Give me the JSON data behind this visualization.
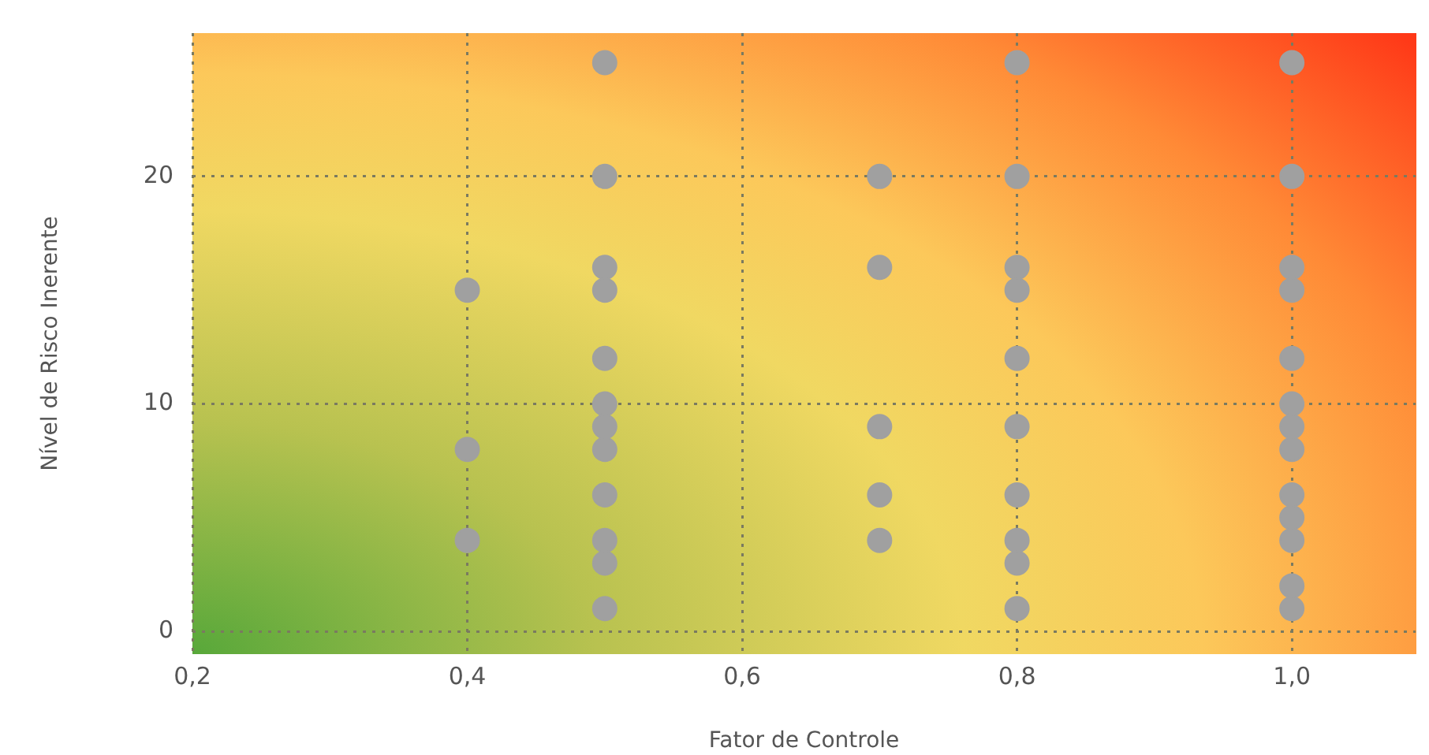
{
  "chart_data": {
    "type": "scatter",
    "xlabel": "Fator de Controle",
    "ylabel": "Nível de Risco Inerente",
    "series": [
      {
        "color": "#a0a0a0",
        "x": [
          0.4,
          0.4,
          0.4,
          0.5,
          0.5,
          0.5,
          0.5,
          0.5,
          0.5,
          0.5,
          0.5,
          0.5,
          0.5,
          0.5,
          0.5,
          0.7,
          0.7,
          0.7,
          0.7,
          0.7,
          0.8,
          0.8,
          0.8,
          0.8,
          0.8,
          0.8,
          0.8,
          0.8,
          0.8,
          0.8,
          1.0,
          1.0,
          1.0,
          1.0,
          1.0,
          1.0,
          1.0,
          1.0,
          1.0,
          1.0,
          1.0,
          1.0,
          1.0
        ],
        "values": [
          15,
          8,
          4,
          25,
          20,
          16,
          15,
          12,
          10,
          9,
          8,
          6,
          4,
          3,
          1,
          20,
          16,
          9,
          6,
          4,
          25,
          20,
          16,
          15,
          12,
          9,
          6,
          4,
          3,
          1,
          25,
          20,
          16,
          15,
          12,
          10,
          9,
          8,
          6,
          5,
          4,
          2,
          1
        ]
      }
    ],
    "xlim": [
      0.2,
      1.09
    ],
    "ylim": [
      -1,
      26.3
    ],
    "xticks": [
      {
        "value": 0.2,
        "label": "0,2"
      },
      {
        "value": 0.4,
        "label": "0,4"
      },
      {
        "value": 0.6,
        "label": "0,6"
      },
      {
        "value": 0.8,
        "label": "0,8"
      },
      {
        "value": 1.0,
        "label": "1,0"
      }
    ],
    "yticks": [
      0,
      10,
      20
    ],
    "grid": true,
    "marker": "circle",
    "legend": false
  }
}
